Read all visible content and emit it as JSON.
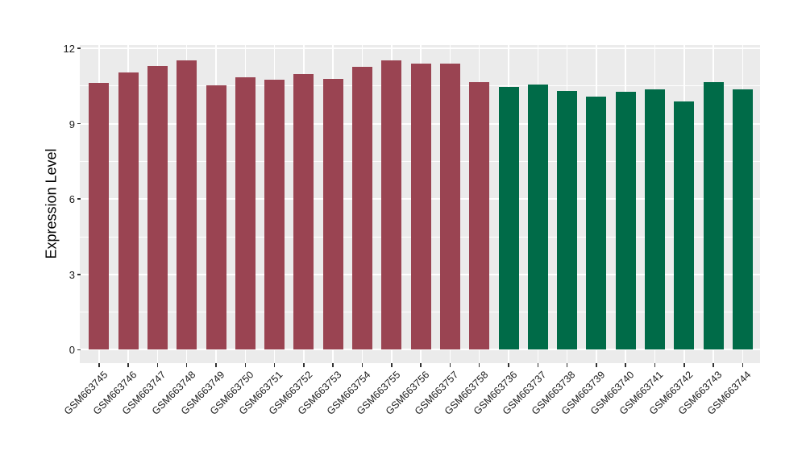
{
  "chart_data": {
    "type": "bar",
    "title": "",
    "xlabel": "",
    "ylabel": "Expression Level",
    "ylim": [
      0,
      12.1
    ],
    "yticks": [
      0,
      3,
      6,
      9,
      12
    ],
    "yticks_minor": [
      1.5,
      4.5,
      7.5,
      10.5
    ],
    "grid": "major and minor white gridlines on grey panel, vertical gridline at each category",
    "legend_position": "none",
    "categories": [
      "GSM663745",
      "GSM663746",
      "GSM663747",
      "GSM663748",
      "GSM663749",
      "GSM663750",
      "GSM663751",
      "GSM663752",
      "GSM663753",
      "GSM663754",
      "GSM663755",
      "GSM663756",
      "GSM663757",
      "GSM663758",
      "GSM663736",
      "GSM663737",
      "GSM663738",
      "GSM663739",
      "GSM663740",
      "GSM663741",
      "GSM663742",
      "GSM663743",
      "GSM663744"
    ],
    "series": [
      {
        "name": "Expression Level",
        "values": [
          10.63,
          11.05,
          11.28,
          11.53,
          10.53,
          10.84,
          10.75,
          10.98,
          10.78,
          11.26,
          11.53,
          11.38,
          11.4,
          10.65,
          10.47,
          10.55,
          10.31,
          10.07,
          10.27,
          10.36,
          9.88,
          10.66,
          10.37
        ]
      }
    ],
    "bar_colors": [
      "#9A4452",
      "#9A4452",
      "#9A4452",
      "#9A4452",
      "#9A4452",
      "#9A4452",
      "#9A4452",
      "#9A4452",
      "#9A4452",
      "#9A4452",
      "#9A4452",
      "#9A4452",
      "#9A4452",
      "#9A4452",
      "#006B48",
      "#006B48",
      "#006B48",
      "#006B48",
      "#006B48",
      "#006B48",
      "#006B48",
      "#006B48",
      "#006B48"
    ],
    "groups": [
      {
        "color": "#9A4452",
        "first_sample": "GSM663745",
        "last_sample": "GSM663758",
        "count": 14
      },
      {
        "color": "#006B48",
        "first_sample": "GSM663736",
        "last_sample": "GSM663744",
        "count": 9
      }
    ]
  },
  "style": {
    "panel_background": "#EBEBEB",
    "grid_color": "#FFFFFF",
    "figure_background": "#FFFFFF",
    "axis_text_color": "#1A1A1A",
    "tick_mark_color": "#333333",
    "bar_color_red": "#9A4452",
    "bar_color_green": "#006B48"
  }
}
